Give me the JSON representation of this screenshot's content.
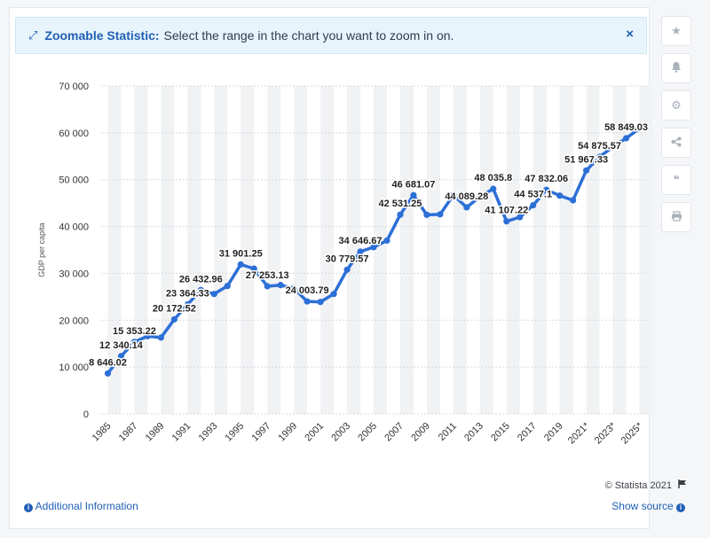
{
  "banner": {
    "title": "Zoomable Statistic:",
    "text": "Select the range in the chart you want to zoom in on.",
    "close": "×"
  },
  "sidebar_tools": [
    {
      "name": "favorite-star-icon",
      "glyph": "★"
    },
    {
      "name": "notification-bell-icon",
      "glyph": "🔔"
    },
    {
      "name": "settings-gear-icon",
      "glyph": "⚙"
    },
    {
      "name": "share-icon",
      "glyph": "⋖"
    },
    {
      "name": "cite-quote-icon",
      "glyph": "❝"
    },
    {
      "name": "print-icon",
      "glyph": "⎙"
    }
  ],
  "footer": {
    "credit": "© Statista 2021",
    "additional_info": "Additional Information",
    "show_source": "Show source"
  },
  "colors": {
    "line": "#2c6fd6",
    "band": "#f1f2f4",
    "grid": "#d6d9dd",
    "accent": "#1f5fb5"
  },
  "chart_data": {
    "type": "line",
    "ylabel": "GDP per capita",
    "xlabel": "",
    "ylim": [
      0,
      70000
    ],
    "yticks": [
      0,
      10000,
      20000,
      30000,
      40000,
      50000,
      60000,
      70000
    ],
    "ytick_labels": [
      "0",
      "10 000",
      "20 000",
      "30 000",
      "40 000",
      "50 000",
      "60 000",
      "70 000"
    ],
    "x": [
      "1985",
      "1986",
      "1987",
      "1988",
      "1989",
      "1990",
      "1991",
      "1992",
      "1993",
      "1994",
      "1995",
      "1996",
      "1997",
      "1998",
      "1999",
      "2000",
      "2001",
      "2002",
      "2003",
      "2004",
      "2005",
      "2006",
      "2007",
      "2008",
      "2009",
      "2010",
      "2011",
      "2012",
      "2013",
      "2014",
      "2015",
      "2016",
      "2017",
      "2018",
      "2019",
      "2020",
      "2021*",
      "2022*",
      "2023*",
      "2024*",
      "2025*"
    ],
    "xtick_labels": [
      "1985",
      "1987",
      "1989",
      "1991",
      "1993",
      "1995",
      "1997",
      "1999",
      "2001",
      "2003",
      "2005",
      "2007",
      "2009",
      "2011",
      "2013",
      "2015",
      "2017",
      "2019",
      "2021*",
      "2023*",
      "2025*"
    ],
    "values": [
      8646.02,
      12340.14,
      15353.22,
      16600,
      16300,
      20172.52,
      23364.33,
      26432.96,
      25600,
      27300,
      31901.25,
      31000,
      27253.13,
      27500,
      26800,
      24003.79,
      23900,
      25600,
      30779.57,
      34646.67,
      35600,
      37000,
      42531.25,
      46681.07,
      42500,
      42600,
      46700,
      44089.28,
      46400,
      48035.8,
      41107.22,
      42000,
      44537.1,
      47832.06,
      46600,
      45600,
      51967.33,
      54875.57,
      57000,
      58849.03,
      60900
    ],
    "data_labels": [
      {
        "i": 0,
        "text": "8 646.02"
      },
      {
        "i": 1,
        "text": "12 340.14"
      },
      {
        "i": 2,
        "text": "15 353.22"
      },
      {
        "i": 5,
        "text": "20 172.52"
      },
      {
        "i": 6,
        "text": "23 364.33"
      },
      {
        "i": 7,
        "text": "26 432.96"
      },
      {
        "i": 10,
        "text": "31 901.25"
      },
      {
        "i": 12,
        "text": "27 253.13"
      },
      {
        "i": 15,
        "text": "24 003.79"
      },
      {
        "i": 18,
        "text": "30 779.57"
      },
      {
        "i": 19,
        "text": "34 646.67"
      },
      {
        "i": 22,
        "text": "42 531.25"
      },
      {
        "i": 23,
        "text": "46 681.07"
      },
      {
        "i": 27,
        "text": "44 089.28"
      },
      {
        "i": 29,
        "text": "48 035.8"
      },
      {
        "i": 30,
        "text": "41 107.22"
      },
      {
        "i": 32,
        "text": "44 537.1"
      },
      {
        "i": 33,
        "text": "47 832.06"
      },
      {
        "i": 36,
        "text": "51 967.33"
      },
      {
        "i": 37,
        "text": "54 875.57"
      },
      {
        "i": 39,
        "text": "58 849.03"
      }
    ],
    "grid": true,
    "legend": "none"
  }
}
